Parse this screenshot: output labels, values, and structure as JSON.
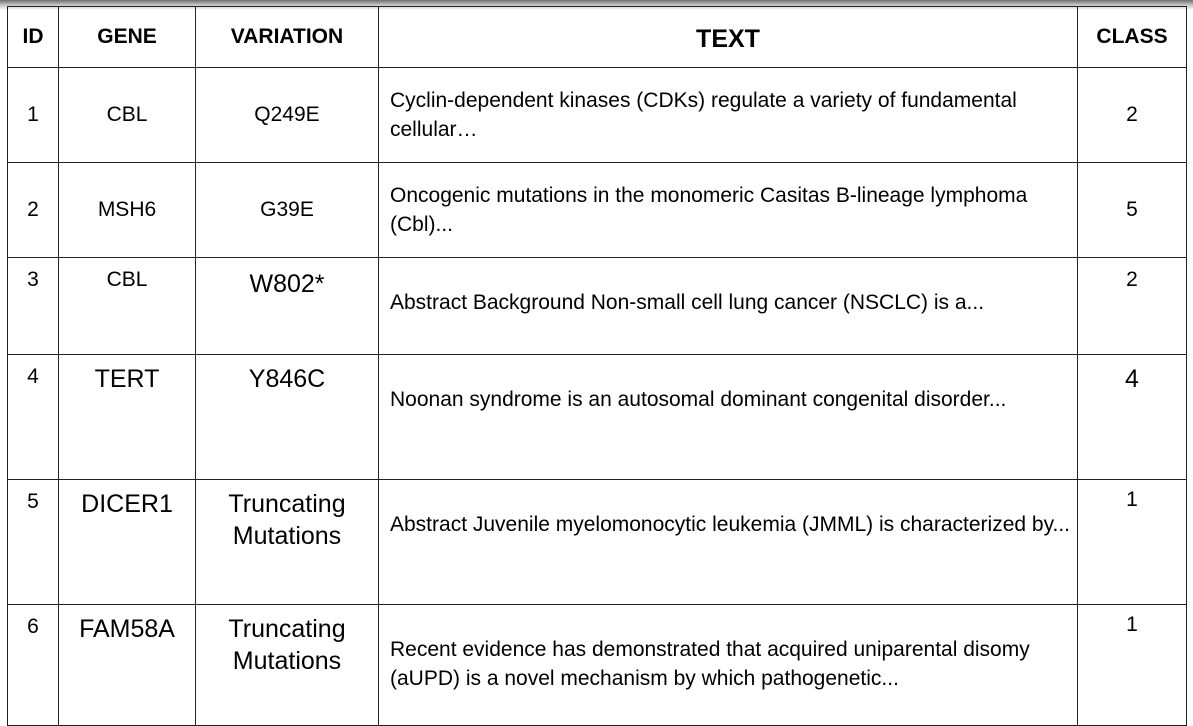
{
  "table": {
    "headers": {
      "id": "ID",
      "gene": "GENE",
      "variation": "VARIATION",
      "text": "TEXT",
      "class": "CLASS"
    },
    "rows": [
      {
        "id": "1",
        "gene": "CBL",
        "variation": "Q249E",
        "text": "Cyclin-dependent kinases (CDKs) regulate a variety of fundamental cellular…",
        "class": "2"
      },
      {
        "id": "2",
        "gene": "MSH6",
        "variation": "G39E",
        "text": "Oncogenic mutations in the monomeric Casitas B-lineage lymphoma (Cbl)...",
        "class": "5"
      },
      {
        "id": "3",
        "gene": "CBL",
        "variation": "W802*",
        "text": "Abstract Background  Non-small cell lung cancer (NSCLC) is a...",
        "class": "2"
      },
      {
        "id": "4",
        "gene": "TERT",
        "variation": "Y846C",
        "text": "Noonan syndrome is an autosomal dominant congenital disorder...",
        "class": "4"
      },
      {
        "id": "5",
        "gene": "DICER1",
        "variation": "Truncating Mutations",
        "text": "Abstract Juvenile myelomonocytic leukemia (JMML) is characterized by...",
        "class": "1"
      },
      {
        "id": "6",
        "gene": "FAM58A",
        "variation": "Truncating Mutations",
        "text": "Recent evidence has demonstrated that acquired uniparental disomy (aUPD) is a novel mechanism by which pathogenetic...",
        "class": "1"
      }
    ]
  }
}
